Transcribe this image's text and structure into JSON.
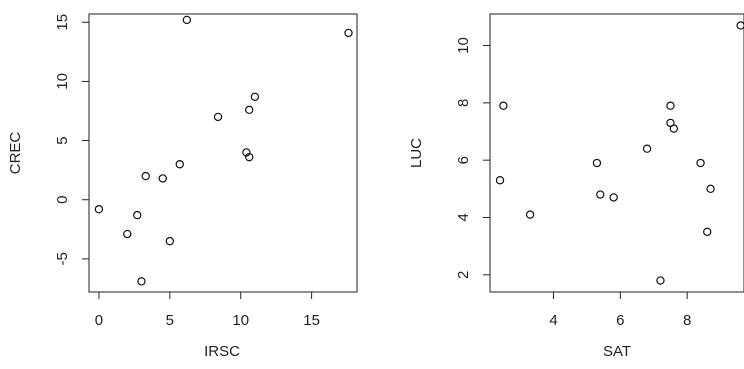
{
  "chart_data": [
    {
      "type": "scatter",
      "title": "",
      "xlabel": "IRSC",
      "ylabel": "CREC",
      "xlim": [
        -0.7,
        18.2
      ],
      "ylim": [
        -7.8,
        15.7
      ],
      "xticks": [
        "0",
        "5",
        "10",
        "15"
      ],
      "yticks": [
        "-5",
        "0",
        "5",
        "10",
        "15"
      ],
      "grid": false,
      "points": [
        {
          "x": 0.0,
          "y": -0.8
        },
        {
          "x": 2.0,
          "y": -2.9
        },
        {
          "x": 2.7,
          "y": -1.3
        },
        {
          "x": 3.0,
          "y": -6.9
        },
        {
          "x": 3.3,
          "y": 2.0
        },
        {
          "x": 4.5,
          "y": 1.8
        },
        {
          "x": 5.0,
          "y": -3.5
        },
        {
          "x": 5.7,
          "y": 3.0
        },
        {
          "x": 6.2,
          "y": 15.2
        },
        {
          "x": 8.4,
          "y": 7.0
        },
        {
          "x": 10.4,
          "y": 4.0
        },
        {
          "x": 10.6,
          "y": 7.6
        },
        {
          "x": 10.6,
          "y": 3.6
        },
        {
          "x": 11.0,
          "y": 8.7
        },
        {
          "x": 17.6,
          "y": 14.1
        }
      ]
    },
    {
      "type": "scatter",
      "title": "",
      "xlabel": "SAT",
      "ylabel": "LUC",
      "xlim": [
        2.1,
        9.7
      ],
      "ylim": [
        1.4,
        11.1
      ],
      "xticks": [
        "4",
        "6",
        "8"
      ],
      "yticks": [
        "2",
        "4",
        "6",
        "8",
        "10"
      ],
      "grid": false,
      "points": [
        {
          "x": 2.4,
          "y": 5.3
        },
        {
          "x": 2.5,
          "y": 7.9
        },
        {
          "x": 3.3,
          "y": 4.1
        },
        {
          "x": 5.3,
          "y": 5.9
        },
        {
          "x": 5.4,
          "y": 4.8
        },
        {
          "x": 5.8,
          "y": 4.7
        },
        {
          "x": 6.8,
          "y": 6.4
        },
        {
          "x": 7.2,
          "y": 1.8
        },
        {
          "x": 7.5,
          "y": 7.9
        },
        {
          "x": 7.5,
          "y": 7.3
        },
        {
          "x": 7.6,
          "y": 7.1
        },
        {
          "x": 8.4,
          "y": 5.9
        },
        {
          "x": 8.6,
          "y": 3.5
        },
        {
          "x": 8.7,
          "y": 5.0
        },
        {
          "x": 9.6,
          "y": 10.7
        }
      ]
    }
  ]
}
